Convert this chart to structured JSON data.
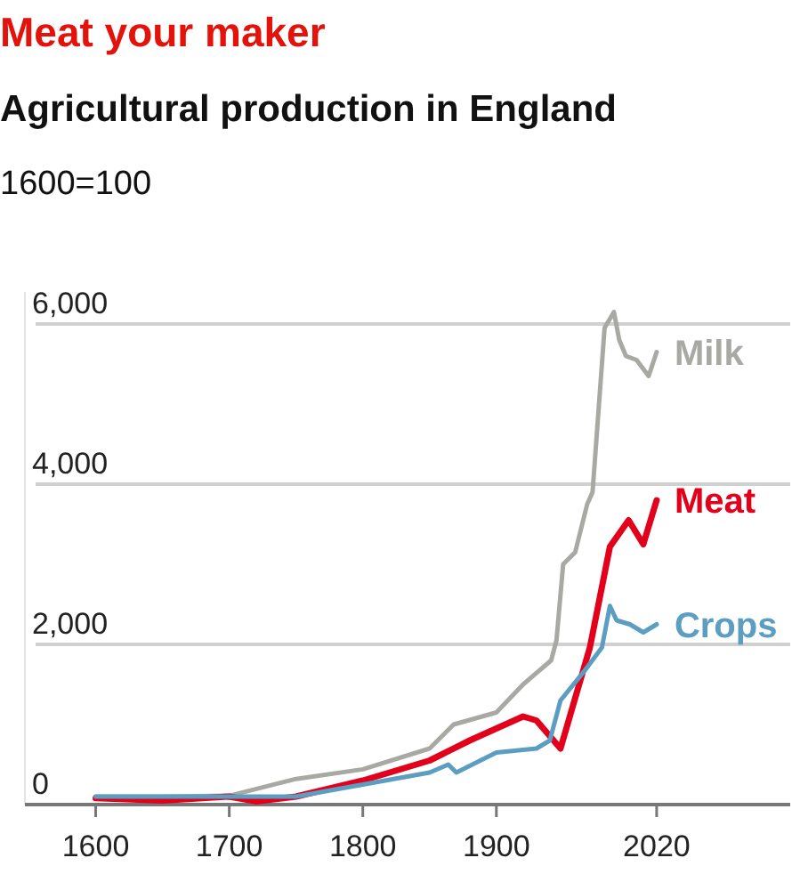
{
  "chart_data": {
    "type": "line",
    "title": "Meat your maker",
    "subtitle": "Agricultural production in England",
    "ylabel": "1600=100",
    "xlim": [
      1555,
      2120
    ],
    "xticks": [
      1600,
      1700,
      1800,
      1900,
      2020
    ],
    "ylim": [
      0,
      6400
    ],
    "yticks": [
      0,
      {
        "value": 2000,
        "label": "2,000"
      },
      {
        "value": 4000,
        "label": "4,000"
      },
      {
        "value": 6000,
        "label": "6,000"
      }
    ],
    "grid": "y",
    "legend": false,
    "series": [
      {
        "name": "Milk",
        "color": "#a9a9a4",
        "x": [
          1600,
          1650,
          1700,
          1750,
          1800,
          1850,
          1868,
          1900,
          1920,
          1941,
          1945,
          1950,
          1959,
          1968,
          1972,
          1981,
          1988,
          1992,
          1997,
          2005,
          2014,
          2020
        ],
        "values": [
          100,
          100,
          110,
          320,
          440,
          700,
          1000,
          1150,
          1500,
          1800,
          2050,
          3000,
          3150,
          3750,
          3900,
          5950,
          6150,
          5800,
          5600,
          5550,
          5350,
          5650
        ]
      },
      {
        "name": "Meat",
        "color": "#e3001b",
        "x": [
          1600,
          1650,
          1700,
          1720,
          1750,
          1800,
          1850,
          1880,
          1920,
          1930,
          1948,
          1970,
          1985,
          1999,
          2010,
          2020
        ],
        "values": [
          80,
          50,
          100,
          40,
          100,
          300,
          550,
          800,
          1100,
          1050,
          700,
          1960,
          3220,
          3550,
          3250,
          3800
        ]
      },
      {
        "name": "Crops",
        "color": "#5b9ec2",
        "x": [
          1600,
          1650,
          1700,
          1750,
          1800,
          1850,
          1864,
          1870,
          1900,
          1930,
          1940,
          1948,
          1966,
          1979,
          1985,
          1990,
          2000,
          2010,
          2020
        ],
        "values": [
          100,
          100,
          100,
          100,
          250,
          400,
          500,
          400,
          650,
          700,
          800,
          1300,
          1670,
          1960,
          2480,
          2300,
          2250,
          2150,
          2250
        ]
      }
    ]
  }
}
